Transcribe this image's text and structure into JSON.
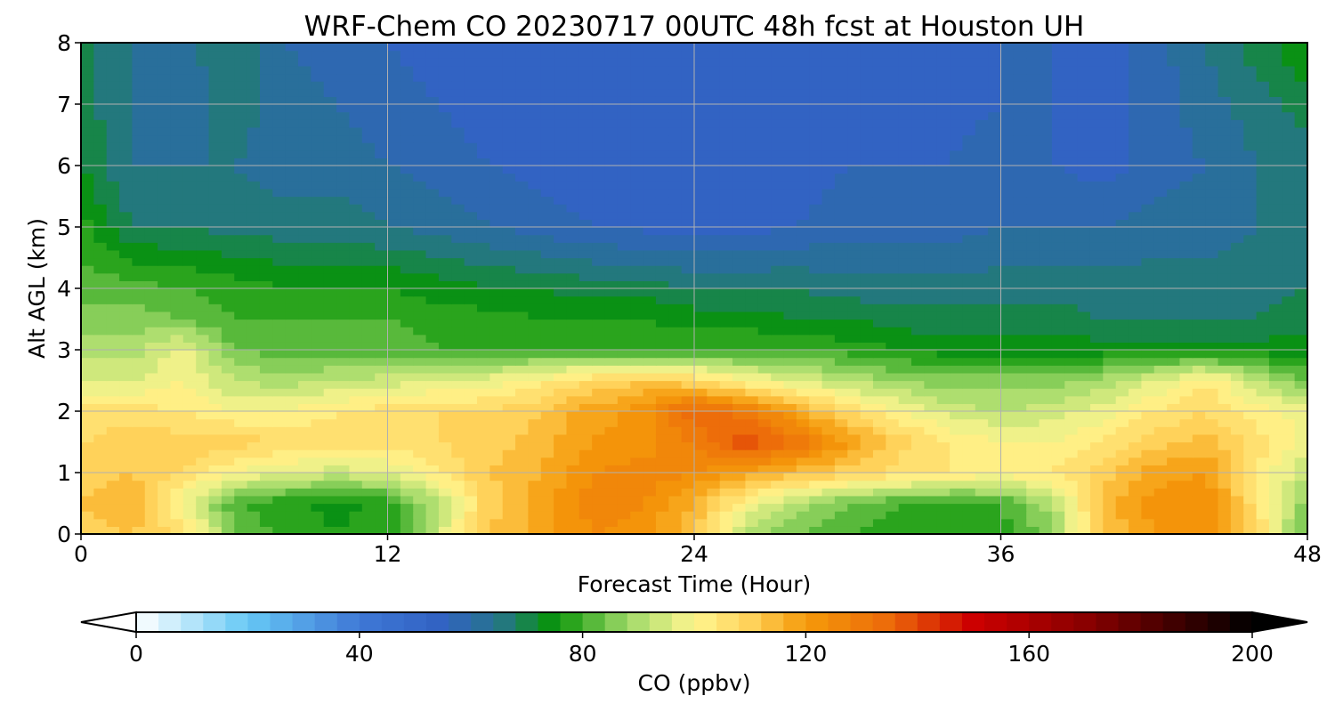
{
  "chart_data": {
    "type": "heatmap",
    "title": "WRF-Chem CO  20230717 00UTC 48h fcst at Houston UH",
    "xlabel": "Forecast Time (Hour)",
    "ylabel": "Alt AGL (km)",
    "x_ticks": [
      "0",
      "12",
      "24",
      "36",
      "48"
    ],
    "y_ticks": [
      "0",
      "1",
      "2",
      "3",
      "4",
      "5",
      "6",
      "7",
      "8"
    ],
    "xlim": [
      0,
      48
    ],
    "ylim": [
      0,
      8
    ],
    "grid": true,
    "x": [
      0,
      2,
      4,
      6,
      8,
      10,
      12,
      14,
      16,
      18,
      20,
      22,
      24,
      26,
      28,
      30,
      32,
      34,
      36,
      38,
      40,
      42,
      44,
      46,
      48
    ],
    "y": [
      0,
      0.5,
      1,
      1.5,
      2,
      2.5,
      3,
      3.5,
      4,
      5,
      6,
      7,
      8
    ],
    "z": [
      [
        108,
        112,
        108,
        85,
        78,
        76,
        78,
        94,
        112,
        118,
        124,
        122,
        112,
        92,
        84,
        80,
        78,
        78,
        78,
        86,
        112,
        120,
        122,
        108,
        80
      ],
      [
        112,
        116,
        98,
        80,
        77,
        75,
        77,
        92,
        110,
        118,
        126,
        124,
        116,
        100,
        90,
        84,
        80,
        78,
        80,
        90,
        114,
        122,
        124,
        106,
        86
      ],
      [
        110,
        112,
        108,
        100,
        96,
        94,
        96,
        104,
        112,
        116,
        124,
        126,
        124,
        118,
        114,
        110,
        106,
        104,
        102,
        104,
        110,
        118,
        120,
        104,
        92
      ],
      [
        108,
        110,
        110,
        110,
        108,
        106,
        106,
        108,
        110,
        114,
        120,
        122,
        128,
        140,
        132,
        120,
        110,
        104,
        100,
        100,
        104,
        110,
        114,
        106,
        98
      ],
      [
        106,
        106,
        104,
        100,
        100,
        104,
        106,
        108,
        108,
        112,
        118,
        122,
        136,
        130,
        118,
        108,
        100,
        94,
        92,
        94,
        98,
        104,
        108,
        102,
        98
      ],
      [
        96,
        96,
        100,
        92,
        90,
        92,
        94,
        96,
        98,
        102,
        108,
        112,
        108,
        100,
        96,
        92,
        88,
        86,
        86,
        86,
        90,
        96,
        104,
        92,
        84
      ],
      [
        90,
        90,
        98,
        84,
        82,
        82,
        82,
        80,
        80,
        80,
        80,
        80,
        80,
        80,
        80,
        78,
        76,
        74,
        74,
        74,
        74,
        74,
        74,
        74,
        74
      ],
      [
        86,
        86,
        84,
        80,
        80,
        80,
        80,
        78,
        78,
        76,
        76,
        76,
        74,
        74,
        72,
        72,
        70,
        70,
        70,
        70,
        68,
        68,
        68,
        68,
        70
      ],
      [
        82,
        82,
        80,
        78,
        76,
        76,
        76,
        74,
        72,
        72,
        70,
        70,
        68,
        68,
        68,
        66,
        66,
        66,
        66,
        66,
        66,
        66,
        66,
        66,
        68
      ],
      [
        78,
        68,
        68,
        66,
        66,
        66,
        64,
        62,
        60,
        58,
        56,
        55,
        54,
        54,
        56,
        58,
        58,
        58,
        60,
        60,
        60,
        62,
        62,
        64,
        66
      ],
      [
        72,
        64,
        64,
        64,
        62,
        62,
        60,
        58,
        56,
        54,
        52,
        52,
        52,
        52,
        54,
        56,
        56,
        56,
        60,
        56,
        54,
        58,
        60,
        64,
        66
      ],
      [
        70,
        64,
        62,
        66,
        62,
        60,
        58,
        56,
        54,
        54,
        54,
        54,
        54,
        54,
        54,
        56,
        54,
        54,
        56,
        56,
        54,
        58,
        62,
        66,
        70
      ],
      [
        70,
        64,
        62,
        68,
        60,
        58,
        56,
        54,
        52,
        54,
        56,
        56,
        56,
        56,
        56,
        56,
        54,
        54,
        56,
        56,
        54,
        58,
        64,
        70,
        76
      ]
    ],
    "colorbar": {
      "label": "CO  (ppbv)",
      "ticks": [
        "0",
        "40",
        "80",
        "120",
        "160",
        "200"
      ],
      "range": [
        0,
        200
      ],
      "extend": "both",
      "colors": [
        {
          "v": 0,
          "c": "#ffffff"
        },
        {
          "v": 20,
          "c": "#66c8f5"
        },
        {
          "v": 40,
          "c": "#3f78d6"
        },
        {
          "v": 55,
          "c": "#3162c2"
        },
        {
          "v": 65,
          "c": "#26758a"
        },
        {
          "v": 75,
          "c": "#079407"
        },
        {
          "v": 88,
          "c": "#9ed968"
        },
        {
          "v": 100,
          "c": "#fff690"
        },
        {
          "v": 110,
          "c": "#ffd25a"
        },
        {
          "v": 120,
          "c": "#f59a0a"
        },
        {
          "v": 135,
          "c": "#ec6a0a"
        },
        {
          "v": 150,
          "c": "#cc0000"
        },
        {
          "v": 170,
          "c": "#8a0000"
        },
        {
          "v": 200,
          "c": "#000000"
        }
      ]
    }
  }
}
